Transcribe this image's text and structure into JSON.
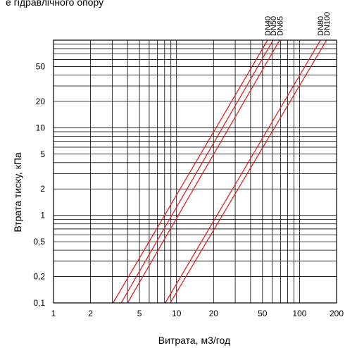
{
  "header_text": "е гідравлічного опору",
  "chart_data": {
    "type": "line",
    "title": "",
    "xlabel": "Витрата, м3/год",
    "ylabel": "Втрата тиску, кПа",
    "x_scale": "log",
    "y_scale": "log",
    "xlim": [
      1,
      200
    ],
    "ylim": [
      0.1,
      100
    ],
    "grid": true,
    "x_ticks": [
      {
        "value": 1,
        "label": "1"
      },
      {
        "value": 2,
        "label": "2"
      },
      {
        "value": 5,
        "label": "5"
      },
      {
        "value": 10,
        "label": "10"
      },
      {
        "value": 20,
        "label": "20"
      },
      {
        "value": 50,
        "label": "50"
      },
      {
        "value": 100,
        "label": "100"
      },
      {
        "value": 200,
        "label": "200"
      }
    ],
    "y_ticks": [
      {
        "value": 0.1,
        "label": "0,1"
      },
      {
        "value": 0.2,
        "label": "0,2"
      },
      {
        "value": 0.5,
        "label": "0,5"
      },
      {
        "value": 1,
        "label": "1"
      },
      {
        "value": 2,
        "label": "2"
      },
      {
        "value": 5,
        "label": "5"
      },
      {
        "value": 10,
        "label": "10"
      },
      {
        "value": 20,
        "label": "20"
      },
      {
        "value": 50,
        "label": "50"
      }
    ],
    "line_color": "#d62728",
    "series": [
      {
        "name": "DN40",
        "x": [
          3.05,
          55
        ],
        "y": [
          0.1,
          100
        ]
      },
      {
        "name": "DN50",
        "x": [
          3.55,
          61
        ],
        "y": [
          0.1,
          100
        ]
      },
      {
        "name": "DN65",
        "x": [
          4.0,
          69
        ],
        "y": [
          0.1,
          100
        ]
      },
      {
        "name": "DN80",
        "x": [
          8.1,
          148
        ],
        "y": [
          0.1,
          100
        ]
      },
      {
        "name": "DN100",
        "x": [
          8.9,
          166
        ],
        "y": [
          0.1,
          100
        ]
      }
    ]
  }
}
